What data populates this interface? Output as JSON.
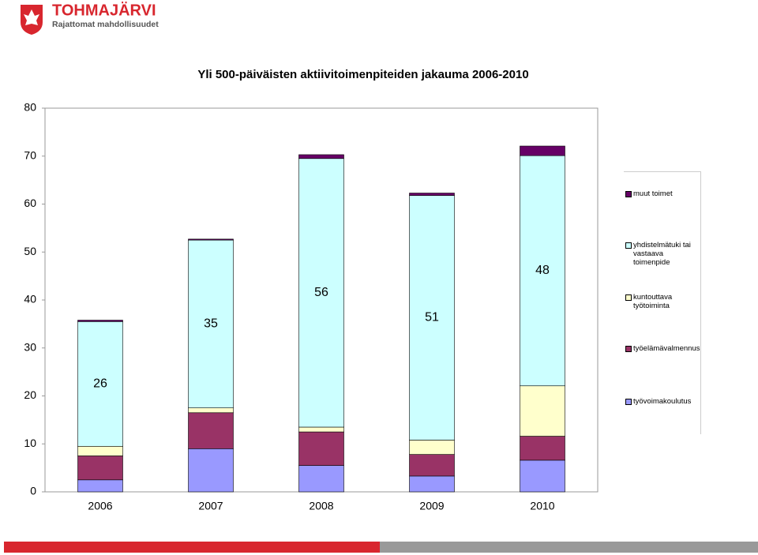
{
  "header": {
    "brand": "TOHMAJÄRVI",
    "slogan": "Rajattomat mahdollisuudet"
  },
  "chart_data": {
    "type": "stacked-bar",
    "title": "Yli 500-päiväisten aktiivitoimenpiteiden jakauma 2006-2010",
    "categories": [
      "2006",
      "2007",
      "2008",
      "2009",
      "2010"
    ],
    "series": [
      {
        "name": "työvoimakoulutus",
        "color": "#9999ff",
        "values": [
          2.5,
          9,
          5.5,
          3.3,
          6.6
        ]
      },
      {
        "name": "työelämävalmennus",
        "color": "#993366",
        "values": [
          5,
          7.5,
          7,
          4.5,
          5
        ]
      },
      {
        "name": "kuntouttava työtoiminta",
        "color": "#ffffcc",
        "values": [
          2,
          1,
          1,
          3,
          10.5
        ]
      },
      {
        "name": "yhdistelmätuki tai vastaava toimenpide",
        "color": "#ccffff",
        "values": [
          26,
          35,
          56,
          51,
          48
        ]
      },
      {
        "name": "muut toimet",
        "color": "#660066",
        "values": [
          0.3,
          0.2,
          0.8,
          0.5,
          2
        ]
      }
    ],
    "labeled_series": 3,
    "ylim": [
      0,
      80
    ],
    "yticks": [
      0,
      10,
      20,
      30,
      40,
      50,
      60,
      70,
      80
    ],
    "grid": false,
    "legend": "right"
  }
}
